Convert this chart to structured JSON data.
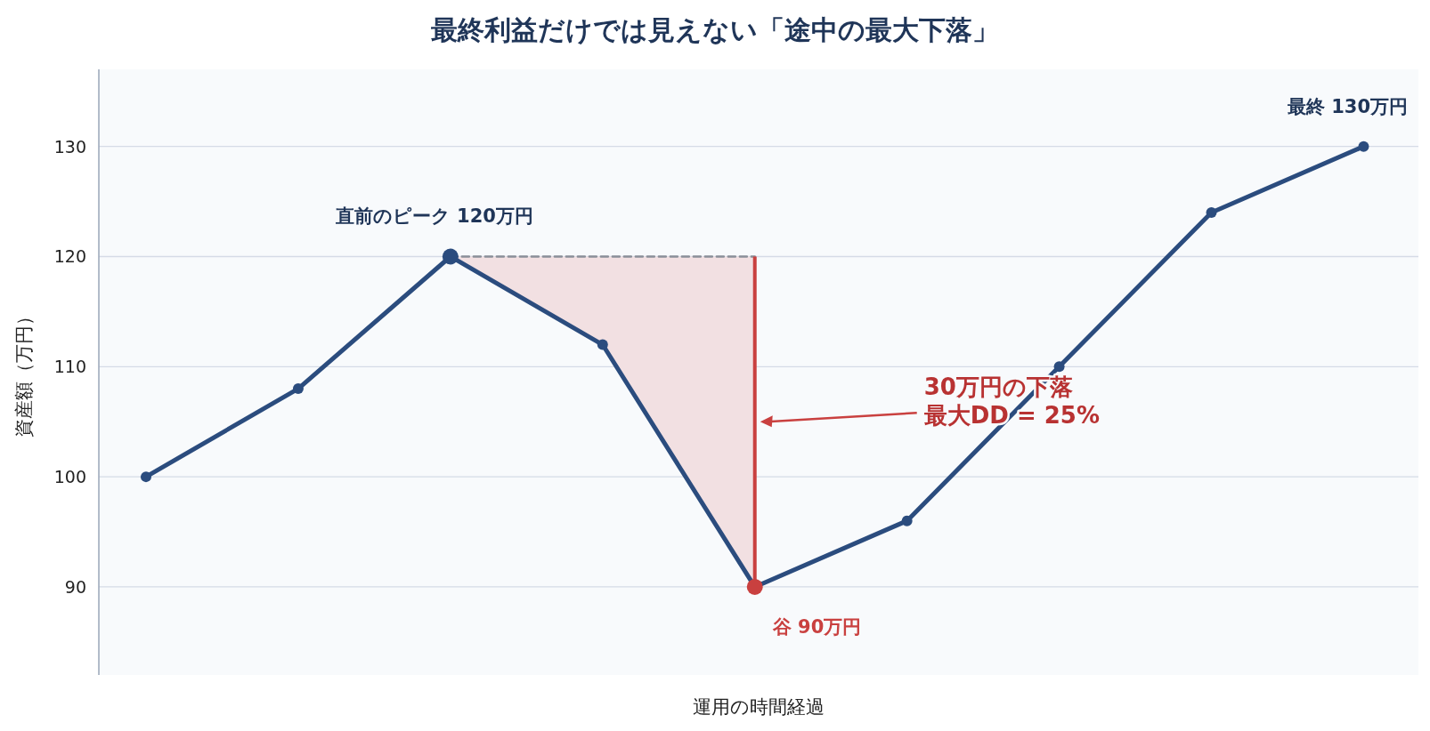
{
  "chart_data": {
    "type": "line",
    "title": "最終利益だけでは見えない「途中の最大下落」",
    "xlabel": "運用の時間経過",
    "ylabel": "資産額（万円）",
    "categories": [
      null,
      null,
      null,
      null,
      null,
      null,
      null,
      null,
      null
    ],
    "series": [
      {
        "type": "line",
        "color": "#8a8f99",
        "line_style": "dashed",
        "values": [
          null,
          null,
          120,
          120,
          120,
          null,
          null,
          null,
          null
        ]
      },
      {
        "type": "bar",
        "color": "#c9403f",
        "values": [
          null,
          null,
          null,
          null,
          30,
          null,
          null,
          null,
          null
        ],
        "base": [
          null,
          null,
          null,
          null,
          90,
          null,
          null,
          null,
          null
        ]
      },
      {
        "color": "#2b4c7e",
        "marker": "circle",
        "lower": [
          null,
          null,
          120,
          112,
          90,
          null,
          null,
          null,
          null
        ],
        "upper": [
          null,
          null,
          120,
          120,
          120,
          null,
          null,
          null,
          null
        ],
        "colors": [
          "#2b4c7e",
          "#2b4c7e",
          "#2b4c7e",
          "#2b4c7e",
          "#c9403f",
          "#2b4c7e",
          "#2b4c7e",
          "#2b4c7e",
          "#2b4c7e"
        ],
        "values": [
          100,
          108,
          120,
          112,
          90,
          96,
          110,
          124,
          130
        ],
        "value_labels": [
          null,
          null,
          "直前のピーク 120万円",
          null,
          "谷 90万円",
          null,
          null,
          null,
          "最終 130万円"
        ]
      }
    ],
    "annotations": [
      {
        "text": "30万円の下落",
        "y": 105
      },
      "最大DD = 25%"
    ],
    "ylim": [
      82,
      137
    ],
    "yticks": [
      90,
      100,
      110,
      120,
      130
    ],
    "grid": "y"
  }
}
